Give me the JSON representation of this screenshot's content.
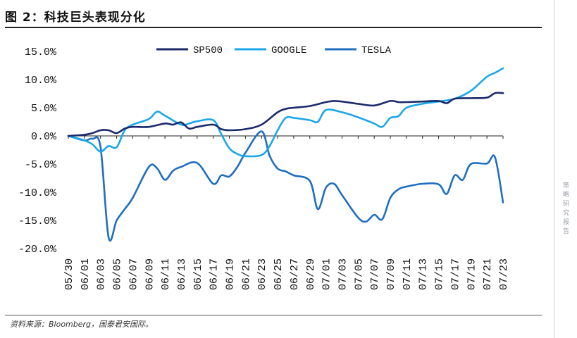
{
  "figure": {
    "title": "图 2：科技巨头表现分化",
    "source": "资料来源：Bloomberg，国泰君安国际。",
    "side_label": "策略研究报告"
  },
  "chart_data": {
    "type": "line",
    "title": "科技巨头表现分化",
    "xlabel": "",
    "ylabel": "",
    "ylim": [
      -20,
      15
    ],
    "yticks": [
      15,
      10,
      5,
      0,
      -5,
      -10,
      -15,
      -20
    ],
    "ytick_labels": [
      "15.0%",
      "10.0%",
      "5.0%",
      "0.0%",
      "-5.0%",
      "-10.0%",
      "-15.0%",
      "-20.0%"
    ],
    "x_tick_labels": [
      "05/30",
      "06/01",
      "06/03",
      "06/05",
      "06/07",
      "06/09",
      "06/11",
      "06/13",
      "06/15",
      "06/17",
      "06/19",
      "06/21",
      "06/23",
      "06/25",
      "06/27",
      "06/29",
      "07/01",
      "07/03",
      "07/05",
      "07/07",
      "07/09",
      "07/11",
      "07/13",
      "07/15",
      "07/17",
      "07/19",
      "07/21",
      "07/23"
    ],
    "legend_position": "top-center",
    "colors": {
      "SP500": "#1b2a6b",
      "GOOGLE": "#1aa7e8",
      "TESLA": "#1f6fbf"
    },
    "series": [
      {
        "name": "SP500",
        "x": [
          0,
          1,
          1.5,
          2,
          2.5,
          3,
          3.5,
          4,
          5,
          6,
          6.5,
          7,
          7.5,
          8,
          9,
          9.5,
          10,
          11,
          12,
          13,
          13.5,
          14,
          15,
          16,
          16.5,
          17,
          18,
          19,
          20,
          20.5,
          21,
          22,
          23,
          23.5,
          24,
          25,
          26,
          26.5,
          27
        ],
        "y": [
          0,
          0.2,
          0.5,
          1.0,
          1.0,
          0.5,
          1.3,
          1.6,
          1.6,
          2.2,
          2.0,
          2.4,
          1.3,
          1.6,
          2.0,
          1.2,
          1.0,
          1.2,
          2.0,
          4.2,
          4.8,
          5.0,
          5.3,
          6.0,
          6.2,
          6.1,
          5.7,
          5.4,
          6.2,
          6.0,
          6.0,
          6.1,
          6.2,
          5.8,
          6.6,
          6.7,
          6.8,
          7.6,
          7.6
        ]
      },
      {
        "name": "GOOGLE",
        "x": [
          0,
          1,
          1.5,
          2,
          2.5,
          3,
          3.5,
          4,
          5,
          5.5,
          6,
          7,
          7.5,
          8,
          9,
          9.5,
          10,
          10.5,
          11,
          12,
          12.5,
          13,
          13.5,
          14,
          15,
          15.5,
          16,
          17,
          18,
          19,
          19.5,
          20,
          20.5,
          21,
          22,
          23,
          24,
          25,
          26,
          26.5,
          27
        ],
        "y": [
          0,
          -0.8,
          -1.5,
          -2.8,
          -1.8,
          -2.0,
          1.0,
          2.0,
          3.0,
          4.3,
          3.6,
          2.0,
          2.2,
          2.6,
          2.8,
          0.3,
          -2.2,
          -3.2,
          -3.6,
          -3.4,
          -1.8,
          1.0,
          3.2,
          3.2,
          2.8,
          2.5,
          4.6,
          4.2,
          3.3,
          2.2,
          1.6,
          3.2,
          3.5,
          5.0,
          5.7,
          6.1,
          6.6,
          8.0,
          10.5,
          11.2,
          12.0
        ]
      },
      {
        "name": "TESLA",
        "x": [
          0,
          1,
          1.5,
          2,
          2.5,
          3,
          3.5,
          4,
          5,
          5.5,
          6,
          6.5,
          7,
          8,
          9,
          9.5,
          10,
          10.5,
          11,
          12,
          12.5,
          13,
          13.5,
          14,
          15,
          15.5,
          16,
          16.5,
          17,
          18,
          18.5,
          19,
          19.5,
          20,
          20.5,
          21,
          22,
          23,
          23.5,
          24,
          24.5,
          25,
          26,
          26.5,
          27
        ],
        "y": [
          0,
          -0.8,
          -0.5,
          -2.0,
          -18.0,
          -15.0,
          -13.0,
          -11.0,
          -5.5,
          -5.7,
          -7.8,
          -6.2,
          -5.5,
          -4.8,
          -8.5,
          -7.0,
          -7.2,
          -5.5,
          -3.0,
          0.8,
          -3.5,
          -5.8,
          -6.3,
          -7.0,
          -8.0,
          -13.0,
          -9.2,
          -8.5,
          -10.5,
          -14.5,
          -15.2,
          -14.0,
          -14.8,
          -11.0,
          -9.5,
          -9.0,
          -8.5,
          -8.6,
          -10.3,
          -7.0,
          -7.8,
          -5.0,
          -4.9,
          -3.8,
          -11.8
        ]
      }
    ]
  }
}
